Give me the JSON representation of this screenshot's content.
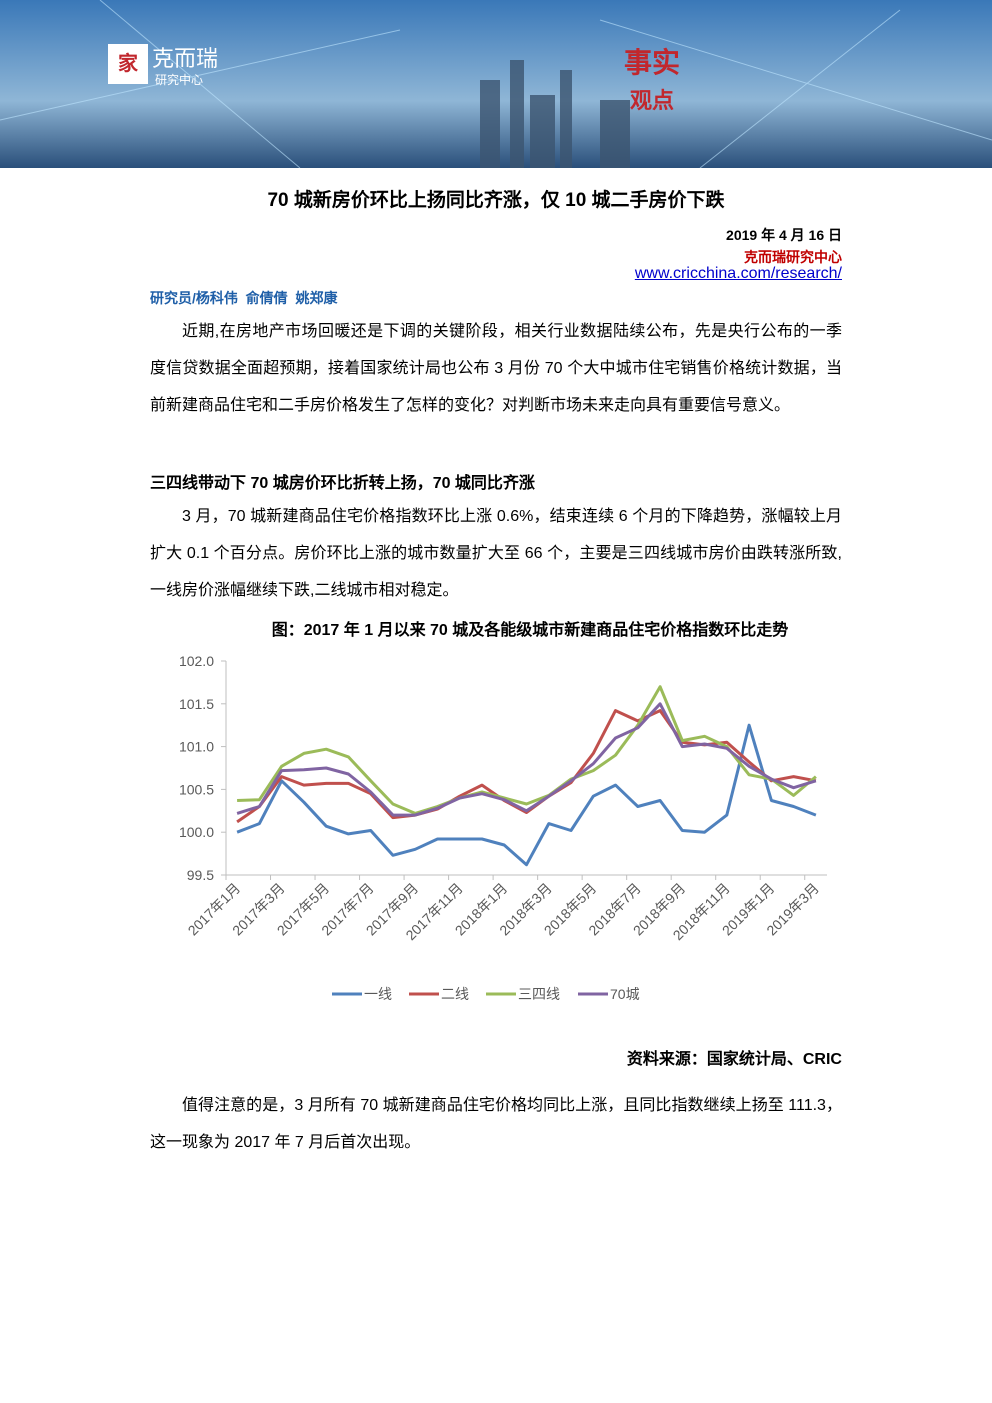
{
  "header": {
    "logo_main": "克而瑞",
    "logo_sub": "研究中心",
    "slogan_1": "事实",
    "slogan_2": "观点"
  },
  "title": "70 城新房价环比上扬同比齐涨，仅 10 城二手房价下跌",
  "date": "2019 年 4 月 16 日",
  "org": "克而瑞研究中心",
  "url": "www.cricchina.com/research/",
  "authors": "研究员/杨科伟  俞倩倩  姚郑康",
  "paragraphs": [
    "近期,在房地产市场回暖还是下调的关键阶段，相关行业数据陆续公布，先是央行公布的一季度信贷数据全面超预期，接着国家统计局也公布 3 月份 70 个大中城市住宅销售价格统计数据，当前新建商品住宅和二手房价格发生了怎样的变化？对判断市场未来走向具有重要信号意义。",
    "3 月，70 城新建商品住宅价格指数环比上涨 0.6%，结束连续 6 个月的下降趋势，涨幅较上月扩大 0.1 个百分点。房价环比上涨的城市数量扩大至 66 个，主要是三四线城市房价由跌转涨所致,一线房价涨幅继续下跌,二线城市相对稳定。",
    "值得注意的是，3 月所有 70 城新建商品住宅价格均同比上涨，且同比指数继续上扬至 111.3，这一现象为 2017 年 7 月后首次出现。"
  ],
  "section_heading": "三四线带动下 70 城房价环比折转上扬，70 城同比齐涨",
  "source": "资料来源：国家统计局、CRIC",
  "chart_data": {
    "type": "line",
    "title": "图：2017 年 1 月以来 70 城及各能级城市新建商品住宅价格指数环比走势",
    "categories": [
      "2017年1月",
      null,
      "2017年3月",
      null,
      "2017年5月",
      null,
      "2017年7月",
      null,
      "2017年9月",
      null,
      "2017年11月",
      null,
      "2018年1月",
      null,
      "2018年3月",
      null,
      "2018年5月",
      null,
      "2018年7月",
      null,
      "2018年9月",
      null,
      "2018年11月",
      null,
      "2019年1月",
      null,
      "2019年3月"
    ],
    "series": [
      {
        "name": "一线",
        "color": "#4f81bd",
        "values": [
          100.0,
          100.1,
          100.6,
          100.35,
          100.07,
          99.98,
          100.02,
          99.73,
          99.8,
          99.92,
          99.92,
          99.92,
          99.85,
          99.62,
          100.1,
          100.02,
          100.42,
          100.55,
          100.3,
          100.37,
          100.02,
          100.0,
          100.2,
          101.25,
          100.37,
          100.3,
          100.2
        ]
      },
      {
        "name": "二线",
        "color": "#c0504d",
        "values": [
          100.12,
          100.3,
          100.65,
          100.55,
          100.57,
          100.57,
          100.45,
          100.17,
          100.2,
          100.27,
          100.42,
          100.55,
          100.37,
          100.23,
          100.42,
          100.58,
          100.92,
          101.42,
          101.3,
          101.42,
          101.05,
          101.02,
          101.05,
          100.82,
          100.6,
          100.65,
          100.6
        ]
      },
      {
        "name": "三四线",
        "color": "#9bbb59",
        "values": [
          100.37,
          100.38,
          100.77,
          100.92,
          100.97,
          100.88,
          100.6,
          100.33,
          100.22,
          100.3,
          100.4,
          100.47,
          100.4,
          100.33,
          100.43,
          100.62,
          100.72,
          100.9,
          101.25,
          101.7,
          101.07,
          101.12,
          101.0,
          100.67,
          100.62,
          100.43,
          100.65
        ]
      },
      {
        "name": "70城",
        "color": "#8064a2",
        "values": [
          100.22,
          100.3,
          100.72,
          100.73,
          100.75,
          100.68,
          100.47,
          100.2,
          100.2,
          100.28,
          100.4,
          100.45,
          100.38,
          100.25,
          100.42,
          100.6,
          100.8,
          101.1,
          101.22,
          101.5,
          101.0,
          101.03,
          100.98,
          100.77,
          100.62,
          100.52,
          100.6
        ]
      }
    ],
    "ylim": [
      99.5,
      102.0
    ],
    "yticks": [
      99.5,
      {
        "value": 100.0,
        "label": "100.0"
      },
      100.5,
      {
        "value": 101.0,
        "label": "101.0"
      },
      101.5,
      {
        "value": 102.0,
        "label": "102.0"
      }
    ],
    "grid": false,
    "legend": "bottom"
  }
}
